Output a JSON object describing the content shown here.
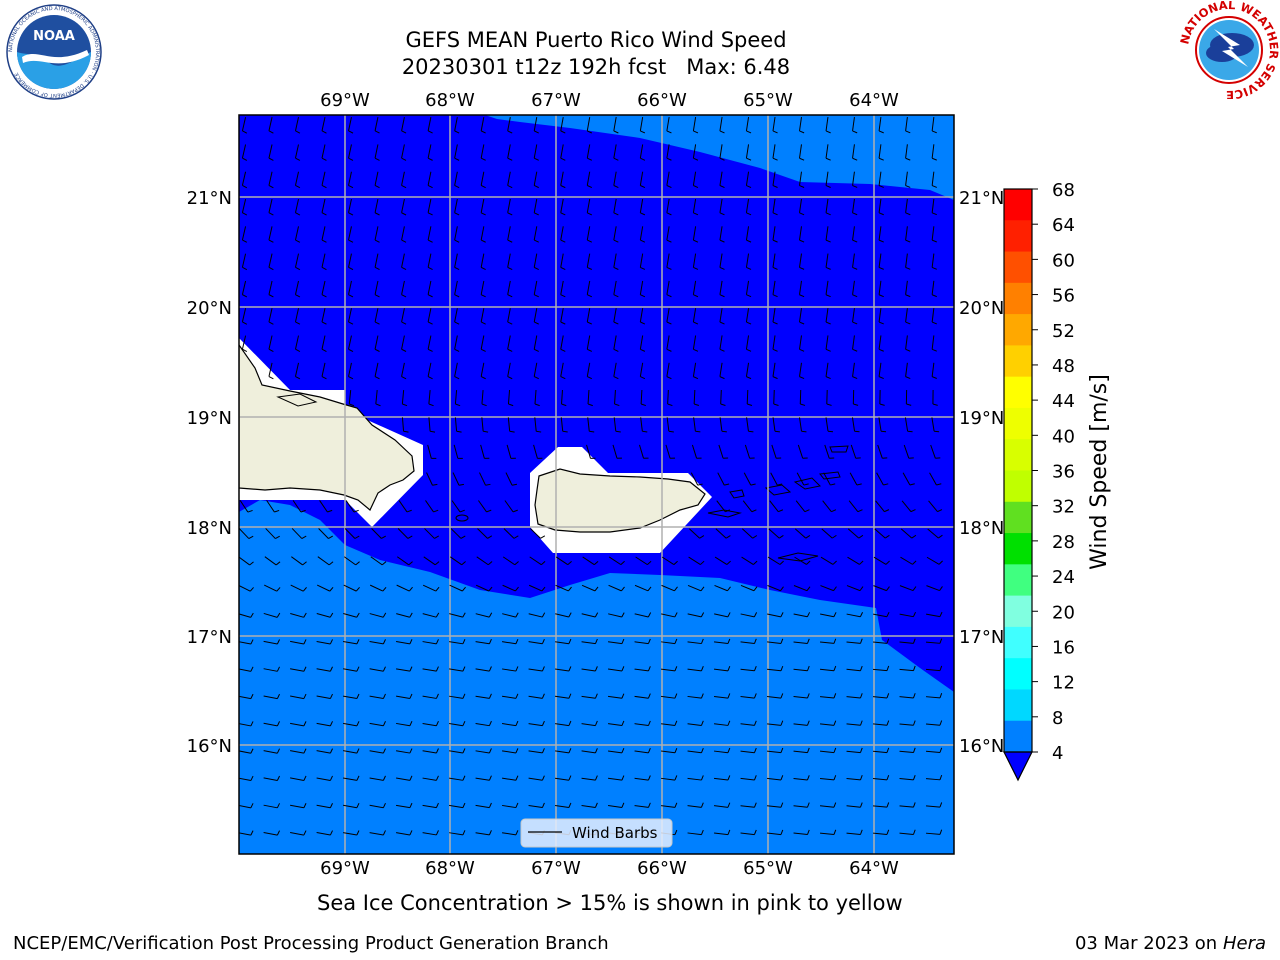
{
  "header": {
    "title_line1": "GEFS MEAN Puerto Rico Wind Speed",
    "title_line2": "20230301 t12z 192h fcst   Max: 6.48"
  },
  "logos": {
    "noaa_text": "NOAA",
    "noaa_ring_text": "NATIONAL OCEANIC AND ATMOSPHERIC ADMINISTRATION · U.S. DEPARTMENT OF COMMERCE",
    "nws_ring_text": "NATIONAL WEATHER SERVICE"
  },
  "map": {
    "lon_labels": [
      "69°W",
      "68°W",
      "67°W",
      "66°W",
      "65°W",
      "64°W"
    ],
    "lat_labels": [
      "21°N",
      "20°N",
      "19°N",
      "18°N",
      "17°N",
      "16°N"
    ],
    "legend_label": "Wind Barbs",
    "colors": {
      "ocean_low": "#0000ff",
      "ocean_mid": "#0080ff",
      "land": "#efefdc",
      "grid": "#b0b0b0"
    }
  },
  "colorbar": {
    "label": "Wind Speed [m/s]",
    "ticks": [
      "68",
      "64",
      "60",
      "56",
      "52",
      "48",
      "44",
      "40",
      "36",
      "32",
      "28",
      "24",
      "20",
      "16",
      "12",
      "8",
      "4"
    ],
    "colors_top_to_bottom": [
      "#ff0000",
      "#ff2000",
      "#ff5000",
      "#ff8000",
      "#ffa800",
      "#ffd000",
      "#ffff00",
      "#eeff00",
      "#d8ff00",
      "#c0ff00",
      "#60e020",
      "#00e000",
      "#40ff80",
      "#80ffe0",
      "#40ffff",
      "#00ffff",
      "#00d8ff",
      "#0080ff"
    ],
    "extend_color": "#0000ff"
  },
  "caption": "Sea Ice Concentration > 15% is shown in pink to yellow",
  "footer": {
    "left": "NCEP/EMC/Verification Post Processing Product Generation Branch",
    "date": "03 Mar 2023 on",
    "machine": "Hera"
  }
}
